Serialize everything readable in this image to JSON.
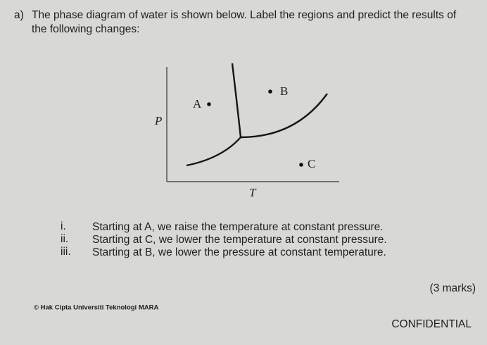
{
  "question": {
    "label": "a)",
    "lines": [
      "The phase diagram of water is shown below. Label the regions and predict the results of",
      "the following changes:"
    ]
  },
  "diagram": {
    "y_axis_label": "P",
    "x_axis_label": "T",
    "points": [
      "A",
      "B",
      "C"
    ]
  },
  "items": [
    {
      "numeral": "i.",
      "text": "Starting at A, we raise the temperature at constant pressure."
    },
    {
      "numeral": "ii.",
      "text": "Starting at C, we lower the temperature at constant pressure."
    },
    {
      "numeral": "iii.",
      "text": "Starting at B, we lower the pressure at constant temperature."
    }
  ],
  "marks": "(3 marks)",
  "footer": {
    "copyright": "© Hak Cipta Universiti Teknologi MARA",
    "classification": "CONFIDENTIAL"
  }
}
